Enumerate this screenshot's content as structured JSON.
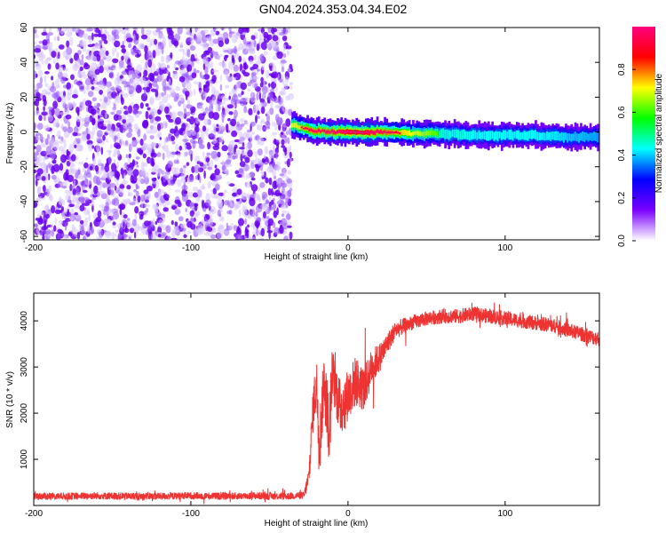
{
  "title": "GN04.2024.353.04.34.E02",
  "chart_data": [
    {
      "type": "heatmap",
      "xlabel": "Height of straight line (km)",
      "ylabel": "Frequency (Hz)",
      "xlim": [
        -200,
        160
      ],
      "ylim": [
        -62,
        60
      ],
      "xticks": [
        -200,
        -100,
        0,
        100
      ],
      "xtick_labels": [
        "-200",
        "-100",
        "0",
        "100"
      ],
      "yticks": [
        60,
        40,
        20,
        0,
        -20,
        -40,
        -60
      ],
      "ytick_labels": [
        "60",
        "40",
        "20",
        "0",
        "-20",
        "-40",
        "-60"
      ],
      "noise_region_x": [
        -200,
        -36
      ],
      "signal_track": {
        "x": [
          -36,
          -25,
          -10,
          0,
          10,
          20,
          40,
          60,
          80,
          100,
          120,
          140,
          160
        ],
        "frequency": [
          4,
          1,
          0,
          0,
          0,
          0,
          -1,
          -1,
          -2,
          -2,
          -2,
          -3,
          -3
        ],
        "peak_amplitude": [
          0.8,
          0.9,
          0.95,
          1.0,
          1.0,
          0.95,
          0.8,
          0.65,
          0.6,
          0.6,
          0.6,
          0.55,
          0.5
        ]
      },
      "colorbar": {
        "label": "Normalized spectral amplitude",
        "ticks": [
          0.0,
          0.2,
          0.4,
          0.6,
          0.8
        ],
        "tick_labels": [
          "0.0",
          "0.2",
          "0.4",
          "0.6",
          "0.8"
        ],
        "range": [
          0,
          1
        ],
        "colors": [
          "#ffffff",
          "#7a00ff",
          "#0000ff",
          "#00ffff",
          "#00ff00",
          "#ffff00",
          "#ff0000",
          "#ff007f"
        ]
      },
      "grid": false
    },
    {
      "type": "line",
      "xlabel": "Height of straight line (km)",
      "ylabel": "SNR (10 * v/v)",
      "xlim": [
        -200,
        160
      ],
      "ylim": [
        0,
        4600
      ],
      "xticks": [
        -200,
        -100,
        0,
        100
      ],
      "xtick_labels": [
        "-200",
        "-100",
        "0",
        "100"
      ],
      "yticks": [
        1000,
        2000,
        3000,
        4000
      ],
      "ytick_labels": [
        "1000",
        "2000",
        "3000",
        "4000"
      ],
      "color": "#ee3333",
      "series": [
        {
          "x": [
            -200,
            -180,
            -160,
            -140,
            -120,
            -100,
            -80,
            -60,
            -40,
            -28,
            -25,
            -22,
            -20,
            -18,
            -15,
            -12,
            -10,
            -5,
            0,
            5,
            10,
            15,
            20,
            25,
            30,
            40,
            50,
            60,
            70,
            80,
            90,
            100,
            110,
            120,
            130,
            140,
            150,
            160
          ],
          "y": [
            200,
            200,
            210,
            200,
            200,
            210,
            200,
            210,
            200,
            220,
            600,
            2200,
            2600,
            1400,
            2800,
            1600,
            2900,
            2100,
            2400,
            2700,
            2500,
            3000,
            3200,
            3500,
            3800,
            3950,
            4050,
            4100,
            4100,
            4150,
            4100,
            4050,
            4000,
            3950,
            3900,
            3800,
            3700,
            3600
          ],
          "spread": [
            100,
            100,
            100,
            100,
            100,
            100,
            100,
            100,
            100,
            100,
            300,
            600,
            800,
            900,
            800,
            900,
            700,
            800,
            700,
            700,
            600,
            500,
            400,
            300,
            250,
            200,
            200,
            200,
            200,
            200,
            200,
            200,
            200,
            200,
            200,
            200,
            200,
            200
          ]
        }
      ],
      "grid": false
    }
  ]
}
